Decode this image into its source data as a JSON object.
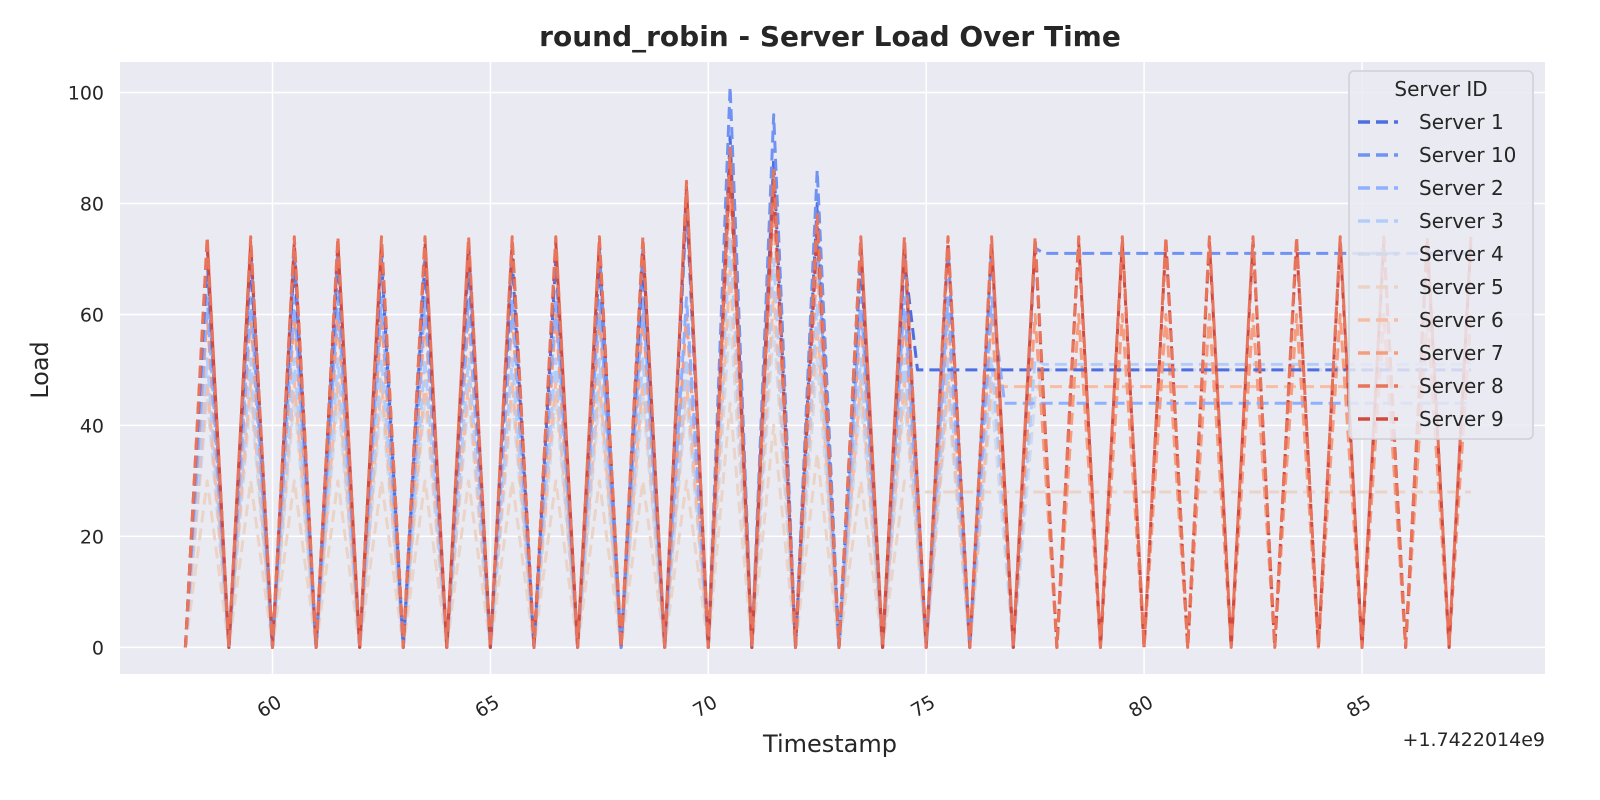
{
  "chart_data": {
    "type": "line",
    "title": "round_robin - Server Load Over Time",
    "xlabel": "Timestamp",
    "ylabel": "Load",
    "x_offset_text": "+1.7422014e9",
    "xlim": [
      56.5,
      89.2
    ],
    "ylim": [
      -4.8,
      105.5
    ],
    "xticks": [
      60,
      65,
      70,
      75,
      80,
      85
    ],
    "yticks": [
      0,
      20,
      40,
      60,
      80,
      100
    ],
    "grid": true,
    "legend": {
      "title": "Server ID",
      "placement": "top-right"
    },
    "series": [
      {
        "name": "Server 1",
        "color": "#4c6ee0",
        "peak": 70,
        "peaks_special": [
          92,
          88,
          80
        ],
        "flat": {
          "from": 74.8,
          "to": 87.5,
          "value": 50
        }
      },
      {
        "name": "Server 10",
        "color": "#6f92f3",
        "peak": 72,
        "peaks_special": [
          101,
          96,
          86
        ],
        "flat": {
          "from": 77.7,
          "to": 87.5,
          "value": 71
        }
      },
      {
        "name": "Server 2",
        "color": "#8fb0fe",
        "peak": 63,
        "peaks_special": [
          88,
          84,
          74
        ],
        "flat": {
          "from": 76.8,
          "to": 87.5,
          "value": 44
        }
      },
      {
        "name": "Server 3",
        "color": "#b3cdfb",
        "peak": 52,
        "peaks_special": [
          74,
          70,
          62
        ],
        "flat": {
          "from": 77.7,
          "to": 87.5,
          "value": 51
        }
      },
      {
        "name": "Server 4",
        "color": "#d1dae9",
        "peak": 45,
        "peaks_special": [
          60,
          58,
          52
        ],
        "flat": {
          "from": 77.7,
          "to": 87.5,
          "value": 50
        }
      },
      {
        "name": "Server 5",
        "color": "#ead4c8",
        "peak": 30,
        "peaks_special": [
          44,
          40,
          35
        ],
        "flat": {
          "from": 74.8,
          "to": 87.5,
          "value": 28
        }
      },
      {
        "name": "Server 6",
        "color": "#f7bca1",
        "peak": 48,
        "peaks_special": [
          68,
          64,
          58
        ],
        "flat": {
          "from": 76.8,
          "to": 87.5,
          "value": 47
        }
      },
      {
        "name": "Server 7",
        "color": "#f59d7e",
        "peak": 60,
        "peaks_special": [
          84,
          80,
          70
        ],
        "flat": null
      },
      {
        "name": "Server 8",
        "color": "#e7745b",
        "peak": 74,
        "peaks_special": [
          90,
          86,
          78
        ],
        "flat": null
      },
      {
        "name": "Server 9",
        "color": "#d1493f",
        "peak": 73,
        "peaks_special": [
          88,
          84,
          76
        ],
        "flat": null
      }
    ],
    "cycle": {
      "start": 58,
      "end": 87.5,
      "period": 1.0,
      "special_peaks_at": [
        70.5,
        71.6,
        72.6
      ],
      "early_high_peak": {
        "x": 69.5,
        "value": 84
      }
    }
  }
}
